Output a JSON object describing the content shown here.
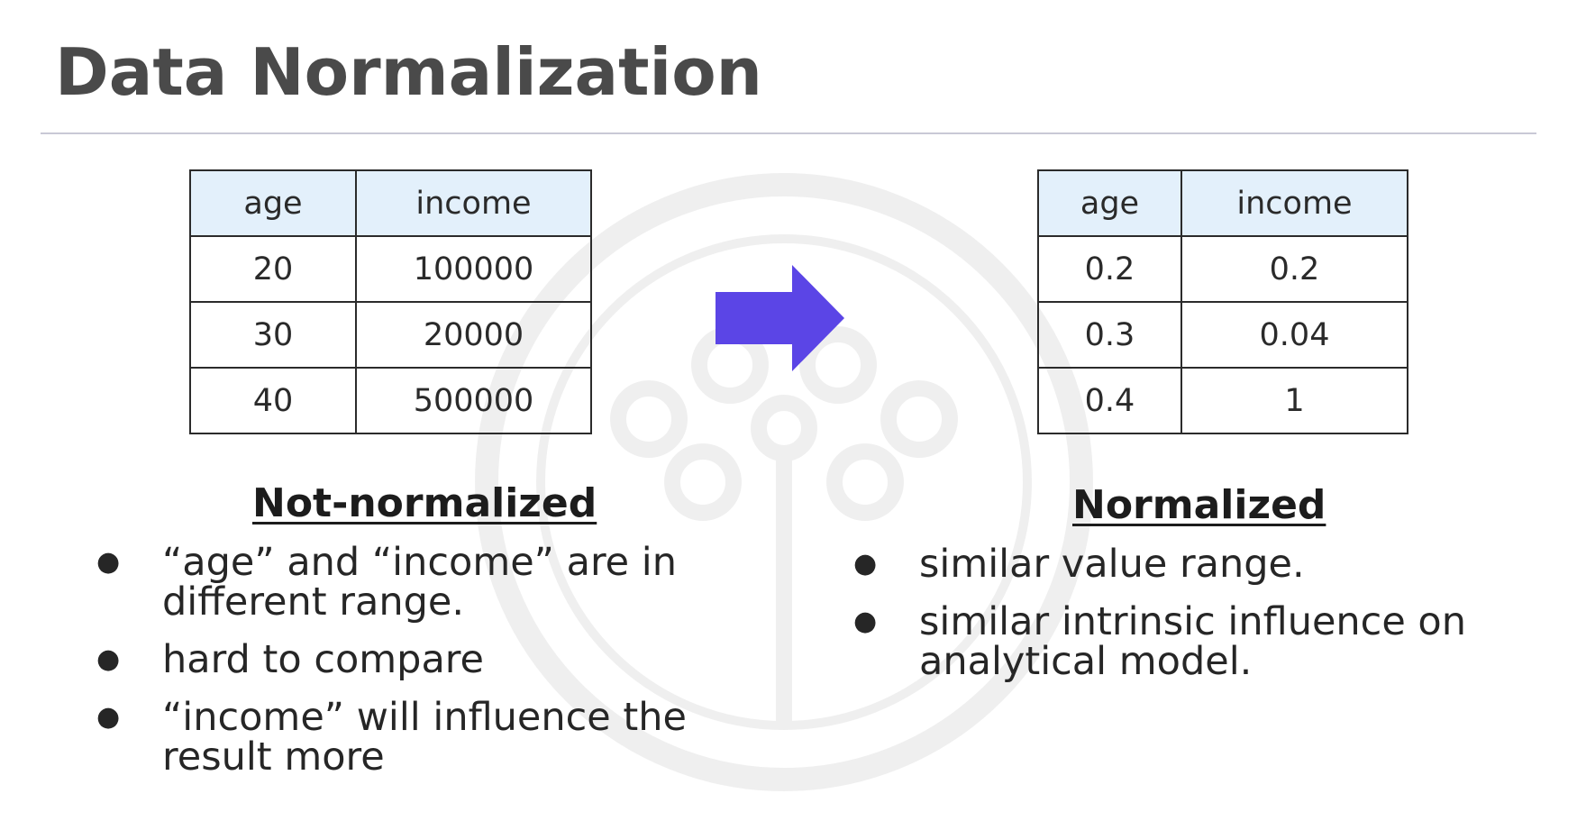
{
  "title": "Data Normalization",
  "colors": {
    "title": "#4a4a4a",
    "header_fill": "#e3f0fb",
    "arrow": "#5b45e6",
    "rule": "#c9c9d6"
  },
  "arrow_icon": "right-arrow-icon",
  "left": {
    "table": {
      "headers": [
        "age",
        "income"
      ],
      "rows": [
        [
          "20",
          "100000"
        ],
        [
          "30",
          "20000"
        ],
        [
          "40",
          "500000"
        ]
      ]
    },
    "heading": "Not-normalized",
    "bullets": [
      "“age” and “income” are in different range.",
      "hard to compare",
      "“income” will influence the result more"
    ]
  },
  "right": {
    "table": {
      "headers": [
        "age",
        "income"
      ],
      "rows": [
        [
          "0.2",
          "0.2"
        ],
        [
          "0.3",
          "0.04"
        ],
        [
          "0.4",
          "1"
        ]
      ]
    },
    "heading": "Normalized",
    "bullets": [
      "similar value range.",
      "similar intrinsic influence on analytical model."
    ]
  }
}
